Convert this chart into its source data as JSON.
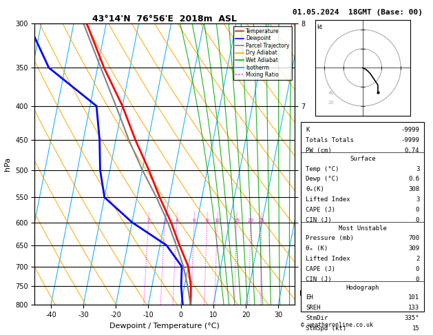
{
  "title_left": "43°14'N  76°56'E  2018m  ASL",
  "title_right": "01.05.2024  18GMT (Base: 00)",
  "xlabel": "Dewpoint / Temperature (°C)",
  "ylabel_left": "hPa",
  "legend_labels": [
    "Temperature",
    "Dewpoint",
    "Parcel Trajectory",
    "Dry Adiabat",
    "Wet Adiabat",
    "Isotherm",
    "Mixing Ratio"
  ],
  "legend_colors": [
    "#ff0000",
    "#0000ff",
    "#808080",
    "#ffa500",
    "#00aa00",
    "#00aaff",
    "#ff00ff"
  ],
  "legend_styles": [
    "solid",
    "solid",
    "solid",
    "solid",
    "solid",
    "solid",
    "dotted"
  ],
  "copyright": "© weatheronline.co.uk",
  "K": "-9999",
  "Totals_Totals": "-9999",
  "PW": "0.74",
  "surf_temp": "3",
  "surf_dewp": "0.6",
  "surf_theta": "308",
  "surf_li": "3",
  "surf_cape": "0",
  "surf_cin": "0",
  "mu_press": "700",
  "mu_theta": "309",
  "mu_li": "2",
  "mu_cape": "0",
  "mu_cin": "0",
  "hodo_eh": "101",
  "hodo_sreh": "133",
  "hodo_stmdir": "335°",
  "hodo_stmspd": "15"
}
